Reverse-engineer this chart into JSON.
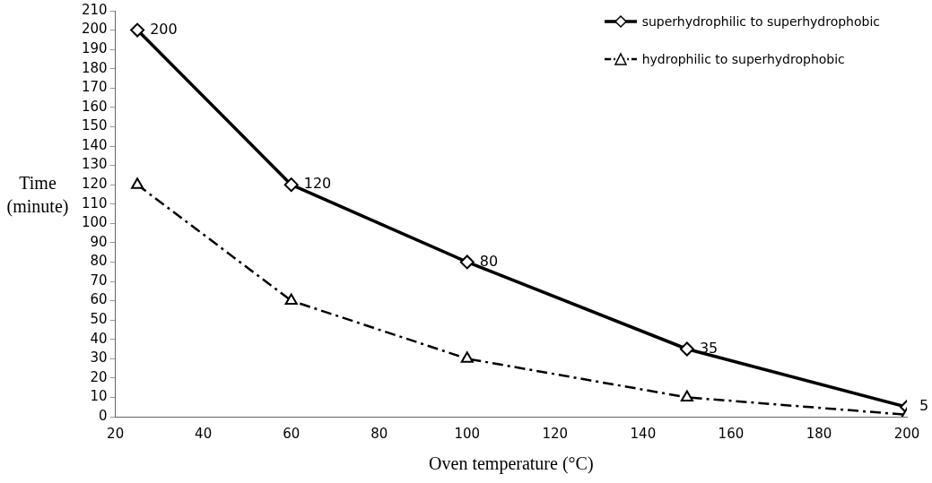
{
  "chart_data": {
    "type": "line",
    "xlabel": "Oven temperature (°C)",
    "ylabel": "Time (minute)",
    "x": [
      25,
      60,
      100,
      150,
      200
    ],
    "series": [
      {
        "name": "superhydrophilic to superhydrophobic",
        "color": "#000000",
        "values": [
          200,
          120,
          80,
          35,
          5
        ],
        "value_labels": [
          "200",
          "120",
          "80",
          "35",
          "5"
        ],
        "marker": "diamond",
        "line_style": "solid"
      },
      {
        "name": "hydrophilic to superhydrophobic",
        "color": "#000000",
        "values": [
          120,
          60,
          30,
          10,
          1
        ],
        "marker": "triangle",
        "line_style": "dashdot"
      }
    ],
    "xlim": [
      20,
      200
    ],
    "xticks": [
      20,
      40,
      60,
      80,
      100,
      120,
      140,
      160,
      180,
      200
    ],
    "ylim": [
      0,
      210
    ],
    "yticks": [
      0,
      10,
      20,
      30,
      40,
      50,
      60,
      70,
      80,
      90,
      100,
      110,
      120,
      130,
      140,
      150,
      160,
      170,
      180,
      190,
      200,
      210
    ],
    "grid": false,
    "legend": "top right"
  }
}
